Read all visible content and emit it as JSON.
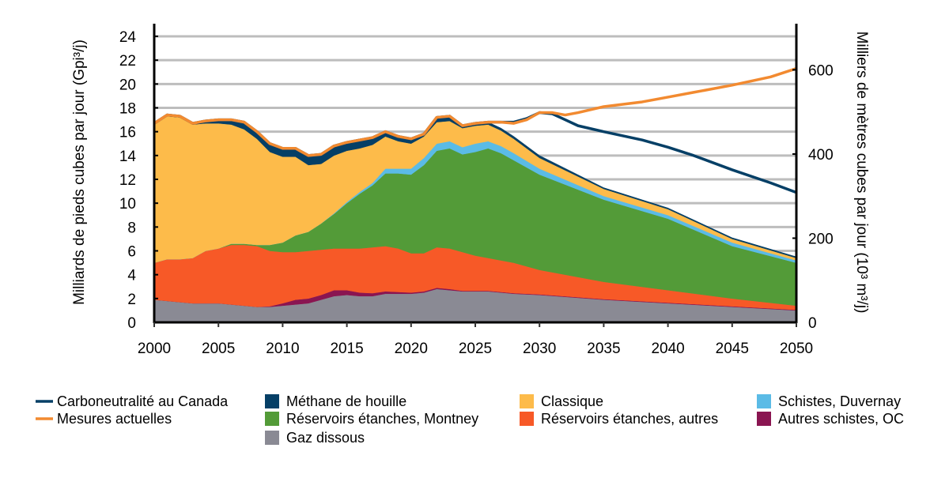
{
  "chart_data": {
    "type": "area",
    "title": "",
    "xlabel": "",
    "ylabel": "Milliards de pieds cubes par jour (Gpi³/j)",
    "ylabel_right": "Milliers de mètres cubes par jour (10³ m³/j)",
    "xlim": [
      2000,
      2050
    ],
    "ylim": [
      0,
      24
    ],
    "ylim_right": [
      0,
      680
    ],
    "right_per_left_unit": 28.317,
    "xticks": [
      "2000",
      "2005",
      "2010",
      "2015",
      "2020",
      "2025",
      "2030",
      "2035",
      "2040",
      "2045",
      "2050"
    ],
    "yticks": [
      "0",
      "2",
      "4",
      "6",
      "8",
      "10",
      "12",
      "14",
      "16",
      "18",
      "20",
      "22",
      "24"
    ],
    "yticks_right": [
      "0",
      "200",
      "400",
      "600"
    ],
    "grid": true,
    "legend_placement": "bottom",
    "x": [
      2000,
      2001,
      2002,
      2003,
      2004,
      2005,
      2006,
      2007,
      2008,
      2009,
      2010,
      2011,
      2012,
      2013,
      2014,
      2015,
      2016,
      2017,
      2018,
      2019,
      2020,
      2021,
      2022,
      2023,
      2024,
      2025,
      2026,
      2027,
      2028,
      2030,
      2035,
      2040,
      2045,
      2050
    ],
    "stacked_series": [
      {
        "name": "Gaz dissous",
        "color": "#8a8a94",
        "values": [
          1.9,
          1.8,
          1.7,
          1.6,
          1.6,
          1.6,
          1.5,
          1.4,
          1.3,
          1.3,
          1.4,
          1.5,
          1.6,
          1.9,
          2.2,
          2.3,
          2.2,
          2.2,
          2.4,
          2.4,
          2.4,
          2.5,
          2.8,
          2.7,
          2.6,
          2.6,
          2.6,
          2.5,
          2.4,
          2.3,
          1.9,
          1.6,
          1.3,
          1.0
        ]
      },
      {
        "name": "Autres schistes, OC",
        "color": "#8a1551",
        "values": [
          0,
          0,
          0,
          0,
          0,
          0,
          0,
          0,
          0,
          0.05,
          0.2,
          0.4,
          0.4,
          0.4,
          0.5,
          0.4,
          0.3,
          0.25,
          0.2,
          0.15,
          0.1,
          0.1,
          0.1,
          0.1,
          0.05,
          0.05,
          0.05,
          0.05,
          0.05,
          0.05,
          0.05,
          0.05,
          0.05,
          0.05
        ]
      },
      {
        "name": "Réservoirs étanches, autres",
        "color": "#f75927",
        "values": [
          3.1,
          3.5,
          3.6,
          3.8,
          4.4,
          4.6,
          5.0,
          5.1,
          5.1,
          4.65,
          4.3,
          4.0,
          4.0,
          3.8,
          3.5,
          3.5,
          3.7,
          3.85,
          3.8,
          3.65,
          3.3,
          3.2,
          3.4,
          3.4,
          3.25,
          2.95,
          2.75,
          2.65,
          2.55,
          2.05,
          1.45,
          1.05,
          0.65,
          0.35
        ]
      },
      {
        "name": "Réservoirs étanches, Montney",
        "color": "#539b38",
        "values": [
          0,
          0,
          0,
          0,
          0,
          0,
          0.1,
          0.1,
          0.1,
          0.5,
          0.8,
          1.4,
          1.6,
          2.2,
          2.9,
          3.8,
          4.6,
          5.2,
          6.1,
          6.3,
          6.6,
          7.4,
          8.1,
          8.4,
          8.2,
          8.7,
          9.2,
          9.0,
          8.6,
          8.0,
          6.9,
          6.0,
          4.4,
          3.6
        ]
      },
      {
        "name": "Schistes, Duvernay",
        "color": "#5bbbe6",
        "values": [
          0,
          0,
          0,
          0,
          0,
          0,
          0,
          0,
          0,
          0,
          0,
          0,
          0,
          0,
          0.05,
          0.1,
          0.15,
          0.2,
          0.4,
          0.4,
          0.5,
          0.6,
          0.6,
          0.6,
          0.6,
          0.7,
          0.6,
          0.6,
          0.6,
          0.5,
          0.3,
          0.3,
          0.3,
          0.2
        ]
      },
      {
        "name": "Classique",
        "color": "#fdbb4a",
        "values": [
          11.6,
          12.0,
          11.9,
          11.2,
          10.7,
          10.5,
          10.0,
          9.6,
          8.9,
          7.8,
          7.2,
          6.6,
          5.6,
          5.0,
          4.85,
          4.3,
          3.65,
          3.2,
          2.7,
          2.3,
          2.1,
          1.8,
          1.8,
          1.7,
          1.6,
          1.5,
          1.4,
          1.3,
          1.2,
          0.9,
          0.6,
          0.5,
          0.3,
          0.2
        ]
      },
      {
        "name": "Méthane de houille",
        "color": "#053f66",
        "values": [
          0.05,
          0.1,
          0.1,
          0.1,
          0.2,
          0.3,
          0.4,
          0.6,
          0.6,
          0.7,
          0.7,
          0.7,
          0.8,
          0.8,
          0.8,
          0.7,
          0.7,
          0.6,
          0.4,
          0.4,
          0.4,
          0.2,
          0.4,
          0.4,
          0.2,
          0.2,
          0.2,
          0.2,
          0.2,
          0.2,
          0.1,
          0.1,
          0.1,
          0.1
        ]
      }
    ],
    "line_x": [
      2000,
      2001,
      2002,
      2003,
      2004,
      2005,
      2006,
      2007,
      2008,
      2009,
      2010,
      2011,
      2012,
      2013,
      2014,
      2015,
      2016,
      2017,
      2018,
      2019,
      2020,
      2021,
      2022,
      2023,
      2024,
      2025,
      2026,
      2027,
      2028,
      2029,
      2030,
      2031,
      2032,
      2033,
      2035,
      2038,
      2040,
      2042,
      2045,
      2048,
      2050
    ],
    "line_series": [
      {
        "name": "Carboneutralité au Canada",
        "color": "#053f66",
        "values": [
          16.7,
          17.4,
          17.3,
          16.7,
          16.9,
          17.0,
          17.0,
          16.8,
          16.0,
          15.0,
          14.6,
          14.6,
          14.0,
          14.1,
          14.8,
          15.1,
          15.3,
          15.5,
          16.0,
          15.6,
          15.4,
          15.8,
          17.2,
          17.3,
          16.5,
          16.7,
          16.8,
          16.8,
          16.8,
          17.1,
          17.6,
          17.5,
          17.0,
          16.5,
          16.0,
          15.3,
          14.7,
          14.0,
          12.8,
          11.7,
          10.9
        ]
      },
      {
        "name": "Mesures actuelles",
        "color": "#f28a30",
        "values": [
          16.7,
          17.4,
          17.3,
          16.7,
          16.9,
          17.0,
          17.0,
          16.8,
          16.0,
          15.0,
          14.6,
          14.6,
          14.0,
          14.1,
          14.8,
          15.1,
          15.3,
          15.5,
          16.0,
          15.6,
          15.4,
          15.8,
          17.2,
          17.3,
          16.5,
          16.7,
          16.8,
          16.8,
          16.7,
          17.0,
          17.6,
          17.6,
          17.4,
          17.6,
          18.1,
          18.5,
          18.9,
          19.3,
          19.9,
          20.6,
          21.3
        ]
      }
    ],
    "legend": [
      {
        "label": "Carboneutralité au Canada",
        "kind": "line",
        "color": "#053f66"
      },
      {
        "label": "Méthane de houille",
        "kind": "box",
        "color": "#053f66"
      },
      {
        "label": "Classique",
        "kind": "box",
        "color": "#fdbb4a"
      },
      {
        "label": "Schistes, Duvernay",
        "kind": "box",
        "color": "#5bbbe6"
      },
      {
        "label": "Mesures actuelles",
        "kind": "line",
        "color": "#f28a30"
      },
      {
        "label": "Réservoirs étanches, Montney",
        "kind": "box",
        "color": "#539b38"
      },
      {
        "label": "Réservoirs étanches, autres",
        "kind": "box",
        "color": "#f75927"
      },
      {
        "label": "Autres schistes, OC",
        "kind": "box",
        "color": "#8a1551"
      },
      {
        "label": "Gaz dissous",
        "kind": "box",
        "color": "#8a8a94"
      }
    ]
  }
}
